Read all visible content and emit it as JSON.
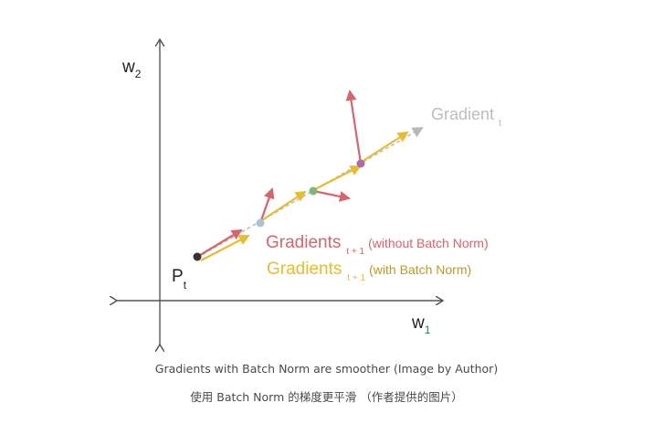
{
  "labels": {
    "w2_main": "w",
    "w2_sub": "2",
    "w1_main": "w",
    "w1_sub": "1",
    "pt_main": "P",
    "pt_sub": "t",
    "gradient_t_main": "Gradient",
    "gradient_t_sub": "t",
    "red_legend_main": "Gradients",
    "red_legend_sub": "t + 1",
    "red_legend_note": "(without Batch Norm)",
    "yellow_legend_main": "Gradients",
    "yellow_legend_sub": "t + 1",
    "yellow_legend_note": "(with Batch Norm)"
  },
  "caption": {
    "english": "Gradients with Batch Norm are smoother (Image by Author)",
    "chinese": "使用 Batch Norm 的梯度更平滑 （作者提供的图片）"
  },
  "colors": {
    "axis": "#555555",
    "red_arrow": "#d9646b",
    "yellow_arrow": "#e8bc2e",
    "dashed_line": "#b8b8b8",
    "gradient_t_label": "#bdbdbd",
    "red_label": "#d9646b",
    "yellow_label": "#e8bc2e",
    "yellow_note": "#c29a1e",
    "point_start": "#333333",
    "point_1": "#a9c2dd",
    "point_2": "#7cb972",
    "point_3": "#a86ca6",
    "w1_sub": "#1f7a6b"
  }
}
